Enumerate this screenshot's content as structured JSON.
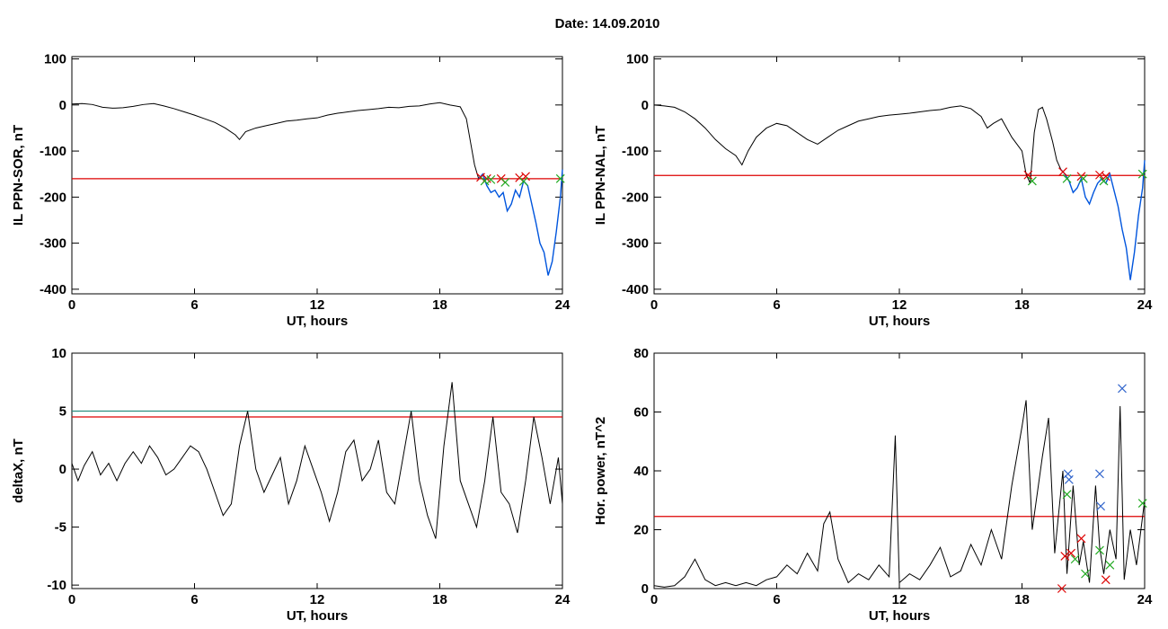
{
  "figure": {
    "title": "Date:  14.09.2010"
  },
  "chart_data": [
    {
      "type": "line",
      "panel": "top-left",
      "xlabel": "UT, hours",
      "ylabel": "IL PPN-SOR, nT",
      "xlim": [
        0,
        24
      ],
      "ylim": [
        -410,
        105
      ],
      "xticks": [
        0,
        6,
        12,
        18,
        24
      ],
      "yticks": [
        100,
        0,
        -100,
        -200,
        -300,
        -400
      ],
      "threshold": {
        "value": -160,
        "color": "#dd0000"
      },
      "highlight_from": 19.9,
      "highlight_color": "#0055dd",
      "x": [
        0,
        0.5,
        1,
        1.5,
        2,
        2.5,
        3,
        3.5,
        4,
        4.5,
        5,
        5.5,
        6,
        6.5,
        7,
        7.5,
        8,
        8.2,
        8.5,
        9,
        9.5,
        10,
        10.5,
        11,
        11.5,
        12,
        12.5,
        13,
        13.5,
        14,
        14.5,
        15,
        15.5,
        16,
        16.5,
        17,
        17.5,
        18,
        18.5,
        19,
        19.3,
        19.5,
        19.7,
        19.9,
        20.1,
        20.3,
        20.5,
        20.7,
        20.9,
        21.1,
        21.3,
        21.5,
        21.7,
        21.9,
        22.1,
        22.3,
        22.5,
        22.7,
        22.9,
        23.1,
        23.3,
        23.5,
        23.7,
        23.9,
        24
      ],
      "y": [
        2,
        3,
        1,
        -5,
        -7,
        -6,
        -3,
        1,
        3,
        -2,
        -8,
        -15,
        -22,
        -30,
        -38,
        -50,
        -65,
        -75,
        -58,
        -50,
        -45,
        -40,
        -35,
        -33,
        -30,
        -28,
        -22,
        -18,
        -15,
        -12,
        -10,
        -8,
        -5,
        -6,
        -3,
        -2,
        2,
        5,
        0,
        -4,
        -30,
        -80,
        -130,
        -160,
        -150,
        -175,
        -190,
        -185,
        -200,
        -190,
        -230,
        -215,
        -185,
        -200,
        -165,
        -175,
        -215,
        -255,
        -300,
        -320,
        -370,
        -340,
        -275,
        -200,
        -140
      ],
      "markers": [
        {
          "x": 20.0,
          "y": -157,
          "color": "#dd0000"
        },
        {
          "x": 20.3,
          "y": -160,
          "color": "#dd0000"
        },
        {
          "x": 21.0,
          "y": -160,
          "color": "#dd0000"
        },
        {
          "x": 21.9,
          "y": -158,
          "color": "#dd0000"
        },
        {
          "x": 22.2,
          "y": -155,
          "color": "#dd0000"
        },
        {
          "x": 20.2,
          "y": -165,
          "color": "#22aa22"
        },
        {
          "x": 20.5,
          "y": -162,
          "color": "#22aa22"
        },
        {
          "x": 21.2,
          "y": -168,
          "color": "#22aa22"
        },
        {
          "x": 22.1,
          "y": -166,
          "color": "#22aa22"
        },
        {
          "x": 23.9,
          "y": -160,
          "color": "#22aa22"
        }
      ]
    },
    {
      "type": "line",
      "panel": "top-right",
      "xlabel": "UT, hours",
      "ylabel": "IL PPN-NAL, nT",
      "xlim": [
        0,
        24
      ],
      "ylim": [
        -410,
        105
      ],
      "xticks": [
        0,
        6,
        12,
        18,
        24
      ],
      "yticks": [
        100,
        0,
        -100,
        -200,
        -300,
        -400
      ],
      "threshold": {
        "value": -153,
        "color": "#dd0000"
      },
      "highlight_from": 19.9,
      "highlight_color": "#0055dd",
      "x": [
        0,
        0.5,
        1,
        1.5,
        2,
        2.5,
        3,
        3.5,
        4,
        4.3,
        4.6,
        5,
        5.5,
        6,
        6.5,
        7,
        7.5,
        8,
        8.5,
        9,
        9.5,
        10,
        10.5,
        11,
        11.5,
        12,
        12.5,
        13,
        13.5,
        14,
        14.5,
        15,
        15.5,
        16,
        16.3,
        16.6,
        17,
        17.5,
        18,
        18.2,
        18.4,
        18.6,
        18.8,
        19,
        19.2,
        19.5,
        19.7,
        19.9,
        20.1,
        20.3,
        20.5,
        20.7,
        20.9,
        21.1,
        21.3,
        21.5,
        21.7,
        21.9,
        22.1,
        22.3,
        22.5,
        22.7,
        22.9,
        23.1,
        23.3,
        23.5,
        23.7,
        23.9,
        24
      ],
      "y": [
        0,
        -2,
        -5,
        -15,
        -30,
        -50,
        -75,
        -95,
        -110,
        -130,
        -100,
        -70,
        -50,
        -40,
        -45,
        -60,
        -75,
        -85,
        -70,
        -55,
        -45,
        -35,
        -30,
        -25,
        -22,
        -20,
        -18,
        -15,
        -12,
        -10,
        -5,
        -2,
        -8,
        -25,
        -50,
        -40,
        -30,
        -70,
        -100,
        -150,
        -170,
        -60,
        -10,
        -5,
        -30,
        -80,
        -120,
        -140,
        -150,
        -165,
        -190,
        -180,
        -160,
        -200,
        -215,
        -190,
        -170,
        -160,
        -170,
        -150,
        -185,
        -220,
        -270,
        -310,
        -380,
        -320,
        -240,
        -180,
        -120
      ],
      "markers": [
        {
          "x": 18.3,
          "y": -152,
          "color": "#dd0000"
        },
        {
          "x": 20.0,
          "y": -145,
          "color": "#dd0000"
        },
        {
          "x": 20.9,
          "y": -155,
          "color": "#dd0000"
        },
        {
          "x": 21.8,
          "y": -152,
          "color": "#dd0000"
        },
        {
          "x": 22.1,
          "y": -155,
          "color": "#dd0000"
        },
        {
          "x": 18.5,
          "y": -165,
          "color": "#22aa22"
        },
        {
          "x": 20.2,
          "y": -160,
          "color": "#22aa22"
        },
        {
          "x": 21.0,
          "y": -160,
          "color": "#22aa22"
        },
        {
          "x": 22.0,
          "y": -165,
          "color": "#22aa22"
        },
        {
          "x": 23.9,
          "y": -150,
          "color": "#22aa22"
        }
      ]
    },
    {
      "type": "line",
      "panel": "bottom-left",
      "xlabel": "UT, hours",
      "ylabel": "deltaX, nT",
      "xlim": [
        0,
        24
      ],
      "ylim": [
        -10.3,
        10
      ],
      "xticks": [
        0,
        6,
        12,
        18,
        24
      ],
      "yticks": [
        10,
        5,
        0,
        -5,
        -10
      ],
      "thresholds": [
        {
          "value": 5,
          "color": "#2a8f80"
        },
        {
          "value": 4.5,
          "color": "#dd0000"
        }
      ],
      "x": [
        0,
        0.3,
        0.6,
        1,
        1.4,
        1.8,
        2.2,
        2.6,
        3,
        3.4,
        3.8,
        4.2,
        4.6,
        5,
        5.4,
        5.8,
        6.2,
        6.6,
        7,
        7.4,
        7.8,
        8.2,
        8.6,
        9,
        9.4,
        9.8,
        10.2,
        10.6,
        11,
        11.4,
        11.8,
        12.2,
        12.6,
        13,
        13.4,
        13.8,
        14.2,
        14.6,
        15,
        15.4,
        15.8,
        16.2,
        16.6,
        17,
        17.4,
        17.8,
        18.2,
        18.6,
        19,
        19.4,
        19.8,
        20.2,
        20.6,
        21,
        21.4,
        21.8,
        22.2,
        22.6,
        23,
        23.4,
        23.8,
        24
      ],
      "y": [
        0.5,
        -1,
        0.3,
        1.5,
        -0.5,
        0.5,
        -1,
        0.5,
        1.5,
        0.5,
        2,
        1,
        -0.5,
        0,
        1,
        2,
        1.5,
        0,
        -2,
        -4,
        -3,
        2,
        5,
        0,
        -2,
        -0.5,
        1,
        -3,
        -1,
        2,
        0,
        -2,
        -4.5,
        -2,
        1.5,
        2.5,
        -1,
        0,
        2.5,
        -2,
        -3,
        1,
        5,
        -1,
        -4,
        -6,
        2,
        7.5,
        -1,
        -3,
        -5,
        -1,
        4.5,
        -2,
        -3,
        -5.5,
        -1,
        4.5,
        1,
        -3,
        1,
        -3
      ]
    },
    {
      "type": "line",
      "panel": "bottom-right",
      "xlabel": "UT, hours",
      "ylabel": "Hor. power, nT^2",
      "xlim": [
        0,
        24
      ],
      "ylim": [
        0,
        80
      ],
      "xticks": [
        0,
        6,
        12,
        18,
        24
      ],
      "yticks": [
        80,
        60,
        40,
        20,
        0
      ],
      "threshold": {
        "value": 24.5,
        "color": "#dd0000"
      },
      "x": [
        0,
        0.5,
        1,
        1.5,
        2,
        2.5,
        3,
        3.5,
        4,
        4.5,
        5,
        5.5,
        6,
        6.5,
        7,
        7.5,
        8,
        8.3,
        8.6,
        9,
        9.5,
        10,
        10.5,
        11,
        11.5,
        11.8,
        12,
        12.5,
        13,
        13.5,
        14,
        14.5,
        15,
        15.5,
        16,
        16.5,
        17,
        17.5,
        18,
        18.2,
        18.5,
        19,
        19.3,
        19.6,
        20,
        20.2,
        20.5,
        20.8,
        21,
        21.3,
        21.6,
        21.8,
        22,
        22.3,
        22.6,
        22.8,
        23,
        23.3,
        23.6,
        24
      ],
      "y": [
        1,
        0.5,
        1,
        4,
        10,
        3,
        1,
        2,
        1,
        2,
        1,
        3,
        4,
        8,
        5,
        12,
        6,
        22,
        26,
        10,
        2,
        5,
        3,
        8,
        4,
        52,
        2,
        5,
        3,
        8,
        14,
        4,
        6,
        15,
        8,
        20,
        10,
        35,
        55,
        64,
        20,
        45,
        58,
        12,
        40,
        5,
        35,
        8,
        16,
        2,
        35,
        14,
        5,
        20,
        10,
        62,
        3,
        20,
        8,
        30
      ],
      "markers": [
        {
          "x": 19.95,
          "y": 0,
          "color": "#dd0000"
        },
        {
          "x": 20.1,
          "y": 11,
          "color": "#dd0000"
        },
        {
          "x": 20.4,
          "y": 12,
          "color": "#dd0000"
        },
        {
          "x": 20.9,
          "y": 17,
          "color": "#dd0000"
        },
        {
          "x": 22.1,
          "y": 3,
          "color": "#dd0000"
        },
        {
          "x": 20.2,
          "y": 32,
          "color": "#22aa22"
        },
        {
          "x": 20.6,
          "y": 10,
          "color": "#22aa22"
        },
        {
          "x": 21.1,
          "y": 5,
          "color": "#22aa22"
        },
        {
          "x": 21.8,
          "y": 13,
          "color": "#22aa22"
        },
        {
          "x": 22.3,
          "y": 8,
          "color": "#22aa22"
        },
        {
          "x": 23.9,
          "y": 29,
          "color": "#22aa22"
        },
        {
          "x": 20.25,
          "y": 39,
          "color": "#3366cc"
        },
        {
          "x": 20.3,
          "y": 37,
          "color": "#3366cc"
        },
        {
          "x": 21.8,
          "y": 39,
          "color": "#3366cc"
        },
        {
          "x": 21.85,
          "y": 28,
          "color": "#3366cc"
        },
        {
          "x": 22.9,
          "y": 68,
          "color": "#3366cc"
        }
      ]
    }
  ]
}
